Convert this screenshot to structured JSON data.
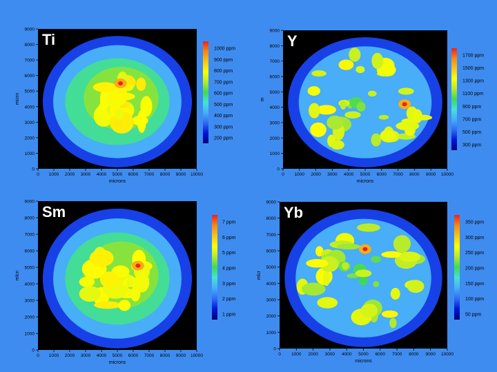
{
  "page": {
    "background": "#3f8cf0"
  },
  "palette": {
    "colormap_low_to_high": [
      "#00007a",
      "#0016d8",
      "#2f6af5",
      "#47aef7",
      "#47e2d4",
      "#3fd85a",
      "#b6ea2c",
      "#ffff00",
      "#f9c418",
      "#f38a14",
      "#ef2020"
    ]
  },
  "chart_data": [
    {
      "type": "heatmap",
      "panel": "top-left",
      "element": "Ti",
      "xlabel": "microns",
      "ylabel": "micro",
      "xlim": [
        0,
        10000
      ],
      "ylim": [
        0,
        9000
      ],
      "x_ticks": [
        "0",
        "1000",
        "2000",
        "3000",
        "4000",
        "5000",
        "6000",
        "7000",
        "8000",
        "9000",
        "10000"
      ],
      "y_ticks": [
        "0",
        "1000",
        "2000",
        "3000",
        "4000",
        "5000",
        "6000",
        "7000",
        "8000",
        "9000"
      ],
      "colorbar": {
        "labels": [
          "1000 ppm",
          "900 ppm",
          "800 ppm",
          "700 ppm",
          "600 ppm",
          "500 ppm",
          "400 ppm",
          "300 ppm",
          "200 ppm"
        ],
        "min": 150,
        "max": 1100
      },
      "hotspot_microns": [
        5200,
        5500
      ],
      "pattern": "central blob"
    },
    {
      "type": "heatmap",
      "panel": "top-right",
      "element": "Y",
      "xlabel": "microns",
      "ylabel": "m",
      "xlim": [
        0,
        10000
      ],
      "ylim": [
        0,
        9000
      ],
      "x_ticks": [
        "0",
        "1000",
        "2000",
        "3000",
        "4000",
        "5000",
        "6000",
        "7000",
        "8000",
        "9000",
        "10000"
      ],
      "y_ticks": [
        "0",
        "1000",
        "2000",
        "3000",
        "4000",
        "5000",
        "6000",
        "7000",
        "8000",
        "9000"
      ],
      "colorbar": {
        "labels": [
          "1700 ppm",
          "1500 ppm",
          "1300 ppm",
          "1100 ppm",
          "900 ppm",
          "700 ppm",
          "500 ppm",
          "300 ppm"
        ],
        "min": 200,
        "max": 1800
      },
      "hotspot_microns": [
        7400,
        4200
      ],
      "pattern": "outer ring"
    },
    {
      "type": "heatmap",
      "panel": "bottom-left",
      "element": "Sm",
      "xlabel": "microns",
      "ylabel": "mlcn",
      "xlim": [
        0,
        10000
      ],
      "ylim": [
        0,
        9000
      ],
      "x_ticks": [
        "0",
        "1000",
        "2000",
        "3000",
        "4000",
        "5000",
        "6000",
        "7000",
        "8000",
        "9000",
        "10000"
      ],
      "y_ticks": [
        "0",
        "1000",
        "2000",
        "3000",
        "4000",
        "5000",
        "6000",
        "7000",
        "8000",
        "9000"
      ],
      "colorbar": {
        "labels": [
          "7 ppm",
          "6 ppm",
          "5 ppm",
          "4 ppm",
          "3 ppm",
          "2 ppm",
          "1 ppm"
        ],
        "min": 0.5,
        "max": 7.5
      },
      "hotspot_microns": [
        6300,
        5100
      ],
      "pattern": "central blob"
    },
    {
      "type": "heatmap",
      "panel": "bottom-right",
      "element": "Yb",
      "xlabel": "microns",
      "ylabel": "mlcr",
      "xlim": [
        0,
        10000
      ],
      "ylim": [
        0,
        9000
      ],
      "x_ticks": [
        "0",
        "1000",
        "2000",
        "3000",
        "4000",
        "5000",
        "6000",
        "7000",
        "8000",
        "9000",
        "10000"
      ],
      "y_ticks": [
        "0",
        "1000",
        "2000",
        "3000",
        "4000",
        "5000",
        "6000",
        "7000",
        "8000",
        "9000"
      ],
      "colorbar": {
        "labels": [
          "350 ppm",
          "300 ppm",
          "250 ppm",
          "200 ppm",
          "150 ppm",
          "100 ppm",
          "50 ppm"
        ],
        "min": 25,
        "max": 375
      },
      "hotspot_microns": [
        5100,
        6100
      ],
      "pattern": "outer ring"
    }
  ]
}
